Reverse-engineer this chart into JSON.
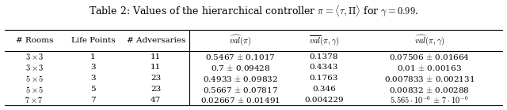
{
  "title": "Table 2: Values of the hierarchical controller $\\pi = \\langle\\tau, \\Pi\\rangle$ for $\\gamma = 0.99$.",
  "col_headers": [
    "# Rooms",
    "Life Points",
    "# Adversaries",
    "$\\widehat{val}(\\pi)$",
    "$\\overline{val}(\\pi, \\gamma)$",
    "$\\widehat{val}(\\pi, \\gamma)$"
  ],
  "rows": [
    [
      "$3 \\times 3$",
      "1",
      "11",
      "0.5467 $\\pm$ 0.1017",
      "0.1378",
      "0.07506 $\\pm$ 0.01664"
    ],
    [
      "$3 \\times 3$",
      "3",
      "11",
      "0.7 $\\pm$ 0.09428",
      "0.4343",
      "0.01 $\\pm$ 0.00163"
    ],
    [
      "$5 \\times 5$",
      "3",
      "23",
      "0.4933 $\\pm$ 0.09832",
      "0.1763",
      "0.007833 $\\pm$ 0.002131"
    ],
    [
      "$5 \\times 5$",
      "5",
      "23",
      "0.5667 $\\pm$ 0.07817",
      "0.346",
      "0.00832 $\\pm$ 0.00288"
    ],
    [
      "$7 \\times 7$",
      "7",
      "47",
      "0.02667 $\\pm$ 0.01491",
      "0.004229",
      "$5.565 \\cdot 10^{-6}$ $\\pm$ $7 \\cdot 10^{-6}$"
    ]
  ],
  "background_color": "#ffffff",
  "font_size": 7.5,
  "title_font_size": 9.0,
  "figsize": [
    6.4,
    1.4
  ],
  "dpi": 100
}
